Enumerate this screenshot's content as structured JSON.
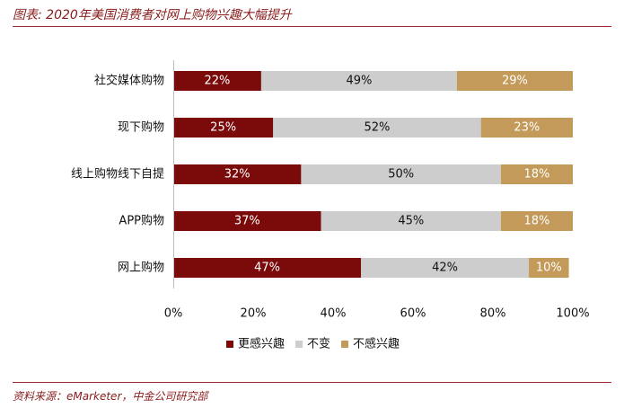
{
  "header": {
    "title": "图表: 2020年美国消费者对网上购物兴趣大幅提升"
  },
  "footer": {
    "source": "资料来源：eMarketer，中金公司研究部"
  },
  "chart_data": {
    "type": "bar",
    "orientation": "horizontal",
    "stacked": true,
    "title": "2020年美国消费者对网上购物兴趣大幅提升",
    "xlabel": "",
    "ylabel": "",
    "xlim": [
      0,
      100
    ],
    "x_ticks": [
      0,
      20,
      40,
      60,
      80,
      100
    ],
    "x_tick_labels": [
      "0%",
      "20%",
      "40%",
      "60%",
      "80%",
      "100%"
    ],
    "value_suffix": "%",
    "categories": [
      "社交媒体购物",
      "现下购物",
      "线上购物线下自提",
      "APP购物",
      "网上购物"
    ],
    "series": [
      {
        "name": "更感兴趣",
        "color": "#7b0a0a",
        "label_color": "#ffffff",
        "values": [
          22,
          25,
          32,
          37,
          47
        ]
      },
      {
        "name": "不变",
        "color": "#cdcdcd",
        "label_color": "#111111",
        "values": [
          49,
          52,
          50,
          45,
          42
        ]
      },
      {
        "name": "不感兴趣",
        "color": "#c39a59",
        "label_color": "#ffffff",
        "values": [
          29,
          23,
          18,
          18,
          10
        ]
      }
    ],
    "legend_position": "bottom",
    "grid": false
  }
}
